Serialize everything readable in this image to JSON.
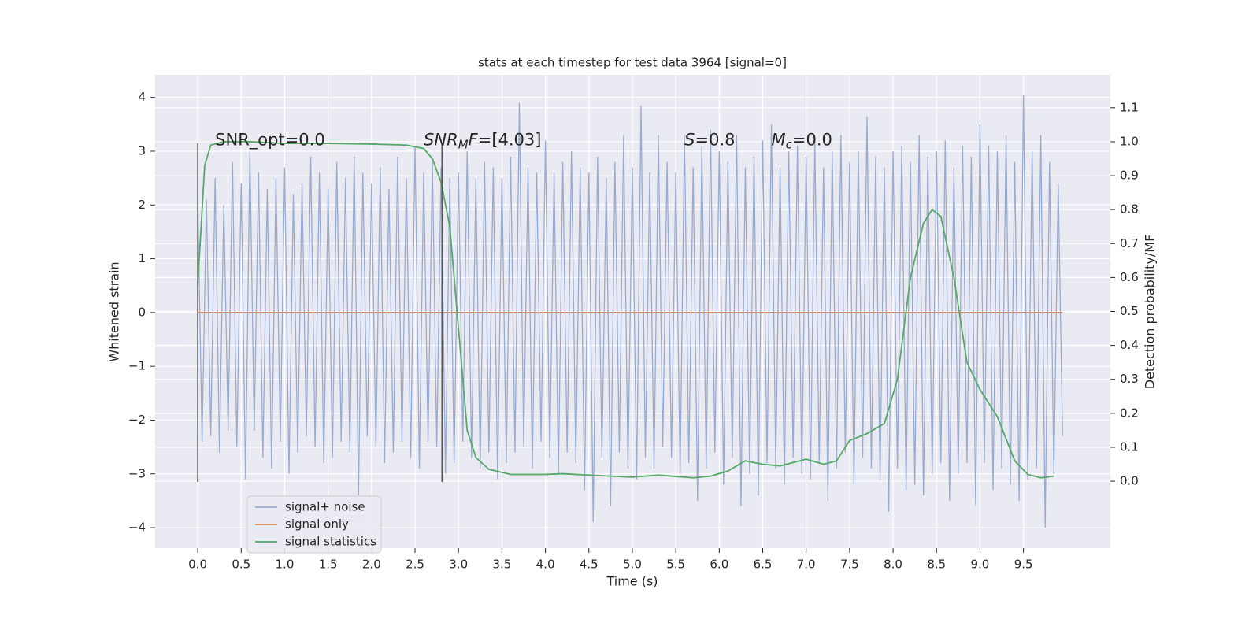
{
  "chart_data": {
    "type": "line",
    "title": "stats at each timestep for test data 3964 [signal=0]",
    "xlabel": "Time (s)",
    "ylabel": "Whitened strain",
    "y2label": "Detection probability/MF",
    "background": "#eaeaf2",
    "grid": true,
    "legend": "lower left",
    "xlim": [
      -0.49,
      10.5
    ],
    "ylim": [
      -4.38,
      4.42
    ],
    "y2lim": [
      -0.197,
      1.197
    ],
    "xticks": [
      {
        "value": 0,
        "label": "0.0"
      },
      {
        "value": 0.5,
        "label": "0.5"
      },
      {
        "value": 1,
        "label": "1.0"
      },
      {
        "value": 1.5,
        "label": "1.5"
      },
      {
        "value": 2,
        "label": "2.0"
      },
      {
        "value": 2.5,
        "label": "2.5"
      },
      {
        "value": 3,
        "label": "3.0"
      },
      {
        "value": 3.5,
        "label": "3.5"
      },
      {
        "value": 4,
        "label": "4.0"
      },
      {
        "value": 4.5,
        "label": "4.5"
      },
      {
        "value": 5,
        "label": "5.0"
      },
      {
        "value": 5.5,
        "label": "5.5"
      },
      {
        "value": 6,
        "label": "6.0"
      },
      {
        "value": 6.5,
        "label": "6.5"
      },
      {
        "value": 7,
        "label": "7.0"
      },
      {
        "value": 7.5,
        "label": "7.5"
      },
      {
        "value": 8,
        "label": "8.0"
      },
      {
        "value": 8.5,
        "label": "8.5"
      },
      {
        "value": 9,
        "label": "9.0"
      },
      {
        "value": 9.5,
        "label": "9.5"
      }
    ],
    "yticks": [
      {
        "value": -4,
        "label": "−4"
      },
      {
        "value": -3,
        "label": "−3"
      },
      {
        "value": -2,
        "label": "−2"
      },
      {
        "value": -1,
        "label": "−1"
      },
      0,
      1,
      2,
      3,
      4
    ],
    "y2ticks": [
      {
        "value": 0,
        "label": "0.0"
      },
      {
        "value": 0.1,
        "label": "0.1"
      },
      {
        "value": 0.2,
        "label": "0.2"
      },
      {
        "value": 0.3,
        "label": "0.3"
      },
      {
        "value": 0.4,
        "label": "0.4"
      },
      {
        "value": 0.5,
        "label": "0.5"
      },
      {
        "value": 0.6,
        "label": "0.6"
      },
      {
        "value": 0.7,
        "label": "0.7"
      },
      {
        "value": 0.8,
        "label": "0.8"
      },
      {
        "value": 0.9,
        "label": "0.9"
      },
      {
        "value": 1,
        "label": "1.0"
      },
      {
        "value": 1.1,
        "label": "1.1"
      }
    ],
    "vlines": {
      "x": [
        0,
        2.81
      ],
      "ymin": -3.15,
      "ymax": 3.15,
      "color": "#555555"
    },
    "annotations": [
      {
        "x": 0.2,
        "y": 3.2,
        "text": "SNR_opt=0.0"
      },
      {
        "x": 2.6,
        "y": 3.2,
        "math": "SNR",
        "sub": "M",
        "math2": "F",
        "rest": "=[4.03]"
      },
      {
        "x": 5.6,
        "y": 3.2,
        "math": "S",
        "rest": "=0.8"
      },
      {
        "x": 6.6,
        "y": 3.2,
        "math": "M",
        "sub": "c",
        "rest": "=0.0"
      }
    ],
    "series": [
      {
        "name": "signal+ noise",
        "color": "#9aabd0",
        "x": [
          0,
          0.05,
          0.1,
          0.15,
          0.2,
          0.25,
          0.3,
          0.35,
          0.4,
          0.45,
          0.5,
          0.55,
          0.6,
          0.65,
          0.7,
          0.75,
          0.8,
          0.85,
          0.9,
          0.95,
          1,
          1.05,
          1.1,
          1.15,
          1.2,
          1.25,
          1.3,
          1.35,
          1.4,
          1.45,
          1.5,
          1.55,
          1.6,
          1.65,
          1.7,
          1.75,
          1.8,
          1.85,
          1.9,
          1.95,
          2,
          2.05,
          2.1,
          2.15,
          2.2,
          2.25,
          2.3,
          2.35,
          2.4,
          2.45,
          2.5,
          2.55,
          2.6,
          2.65,
          2.7,
          2.75,
          2.8,
          2.85,
          2.9,
          2.95,
          3,
          3.05,
          3.1,
          3.15,
          3.2,
          3.25,
          3.3,
          3.35,
          3.4,
          3.45,
          3.5,
          3.55,
          3.6,
          3.65,
          3.7,
          3.75,
          3.8,
          3.85,
          3.9,
          3.95,
          4,
          4.05,
          4.1,
          4.15,
          4.2,
          4.25,
          4.3,
          4.35,
          4.4,
          4.45,
          4.5,
          4.55,
          4.6,
          4.65,
          4.7,
          4.75,
          4.8,
          4.85,
          4.9,
          4.95,
          5,
          5.05,
          5.1,
          5.15,
          5.2,
          5.25,
          5.3,
          5.35,
          5.4,
          5.45,
          5.5,
          5.55,
          5.6,
          5.65,
          5.7,
          5.75,
          5.8,
          5.85,
          5.9,
          5.95,
          6,
          6.05,
          6.1,
          6.15,
          6.2,
          6.25,
          6.3,
          6.35,
          6.4,
          6.45,
          6.5,
          6.55,
          6.6,
          6.65,
          6.7,
          6.75,
          6.8,
          6.85,
          6.9,
          6.95,
          7,
          7.05,
          7.1,
          7.15,
          7.2,
          7.25,
          7.3,
          7.35,
          7.4,
          7.45,
          7.5,
          7.55,
          7.6,
          7.65,
          7.7,
          7.75,
          7.8,
          7.85,
          7.9,
          7.95,
          8,
          8.05,
          8.1,
          8.15,
          8.2,
          8.25,
          8.3,
          8.35,
          8.4,
          8.45,
          8.5,
          8.55,
          8.6,
          8.65,
          8.7,
          8.75,
          8.8,
          8.85,
          8.9,
          8.95,
          9,
          9.05,
          9.1,
          9.15,
          9.2,
          9.25,
          9.3,
          9.35,
          9.4,
          9.45,
          9.5,
          9.55,
          9.6,
          9.65,
          9.7,
          9.75,
          9.8,
          9.85,
          9.9,
          9.95
        ],
        "values": [
          2.2,
          -2.4,
          2.1,
          -2.3,
          2.5,
          -2.6,
          2.0,
          -2.2,
          2.8,
          -2.5,
          2.4,
          -3.1,
          3.0,
          -2.2,
          2.6,
          -2.7,
          2.3,
          -2.9,
          2.5,
          -2.4,
          2.7,
          -3.0,
          2.2,
          -2.6,
          2.4,
          -2.3,
          2.9,
          -2.5,
          2.6,
          -2.8,
          2.3,
          -2.7,
          2.8,
          -2.4,
          2.5,
          -2.6,
          2.9,
          -3.4,
          2.6,
          -2.3,
          2.4,
          -2.5,
          2.7,
          -2.8,
          2.3,
          -2.6,
          2.9,
          -2.4,
          2.5,
          -2.7,
          3.1,
          -2.9,
          2.6,
          -2.4,
          2.8,
          -2.5,
          2.7,
          -3.0,
          2.5,
          -2.8,
          2.6,
          -2.4,
          3.0,
          -2.7,
          2.5,
          -2.9,
          2.8,
          -2.6,
          2.7,
          -3.1,
          2.5,
          -2.8,
          2.9,
          -2.6,
          3.9,
          -2.5,
          2.7,
          -2.9,
          2.6,
          -2.4,
          3.2,
          -2.7,
          2.6,
          -3.0,
          2.8,
          -2.6,
          3.0,
          -2.8,
          2.7,
          -3.3,
          2.6,
          -3.9,
          2.9,
          -2.7,
          2.5,
          -3.6,
          2.8,
          -2.6,
          3.3,
          -2.9,
          2.7,
          -3.1,
          3.85,
          -2.7,
          2.6,
          -2.9,
          3.3,
          -2.5,
          2.8,
          -2.7,
          2.6,
          -3.0,
          3.3,
          -2.8,
          2.7,
          -3.5,
          3.1,
          -2.9,
          3.4,
          -2.6,
          3.0,
          -3.2,
          2.8,
          -2.7,
          3.3,
          -3.6,
          2.7,
          -3.0,
          2.9,
          -3.4,
          3.2,
          -2.8,
          3.5,
          -2.9,
          2.7,
          -3.2,
          3.0,
          -2.7,
          3.1,
          -3.0,
          2.9,
          -3.1,
          3.2,
          -2.8,
          2.7,
          -3.5,
          3.0,
          -2.9,
          3.3,
          -2.6,
          2.8,
          -3.2,
          3.0,
          -2.7,
          3.65,
          -2.9,
          2.9,
          -3.1,
          2.7,
          -3.7,
          3.0,
          -2.9,
          3.1,
          -3.3,
          2.8,
          -3.2,
          3.3,
          -3.4,
          2.9,
          -3.0,
          3.0,
          -2.8,
          3.2,
          -3.5,
          2.7,
          -3.0,
          3.1,
          -2.8,
          2.9,
          -3.6,
          3.5,
          -2.8,
          3.1,
          -3.3,
          3.0,
          -2.9,
          3.3,
          -3.2,
          2.8,
          -3.5,
          4.05,
          -3.1,
          3.0,
          -2.9,
          3.3,
          -4.0,
          2.8,
          -3.0,
          2.4,
          -2.3
        ]
      },
      {
        "name": "signal only",
        "color": "#dd8452",
        "x": [
          0,
          9.95
        ],
        "values": [
          0,
          0
        ]
      },
      {
        "name": "signal statistics",
        "color": "#55a868",
        "axis": "y2",
        "x": [
          0,
          0.08,
          0.15,
          0.3,
          0.6,
          1,
          1.5,
          2,
          2.4,
          2.6,
          2.7,
          2.8,
          2.9,
          3,
          3.1,
          3.2,
          3.35,
          3.6,
          4,
          4.2,
          4.5,
          5,
          5.3,
          5.7,
          5.9,
          6.1,
          6.3,
          6.5,
          6.7,
          7,
          7.2,
          7.35,
          7.5,
          7.7,
          7.9,
          8.05,
          8.2,
          8.35,
          8.45,
          8.55,
          8.7,
          8.85,
          9,
          9.2,
          9.4,
          9.55,
          9.7,
          9.85
        ],
        "values": [
          0.58,
          0.93,
          0.99,
          1.0,
          1.0,
          0.995,
          0.995,
          0.993,
          0.99,
          0.98,
          0.95,
          0.88,
          0.75,
          0.45,
          0.15,
          0.07,
          0.035,
          0.02,
          0.02,
          0.022,
          0.018,
          0.012,
          0.018,
          0.01,
          0.015,
          0.03,
          0.06,
          0.05,
          0.045,
          0.065,
          0.05,
          0.06,
          0.12,
          0.14,
          0.17,
          0.3,
          0.6,
          0.76,
          0.8,
          0.78,
          0.6,
          0.35,
          0.27,
          0.19,
          0.06,
          0.02,
          0.01,
          0.015
        ]
      }
    ]
  }
}
